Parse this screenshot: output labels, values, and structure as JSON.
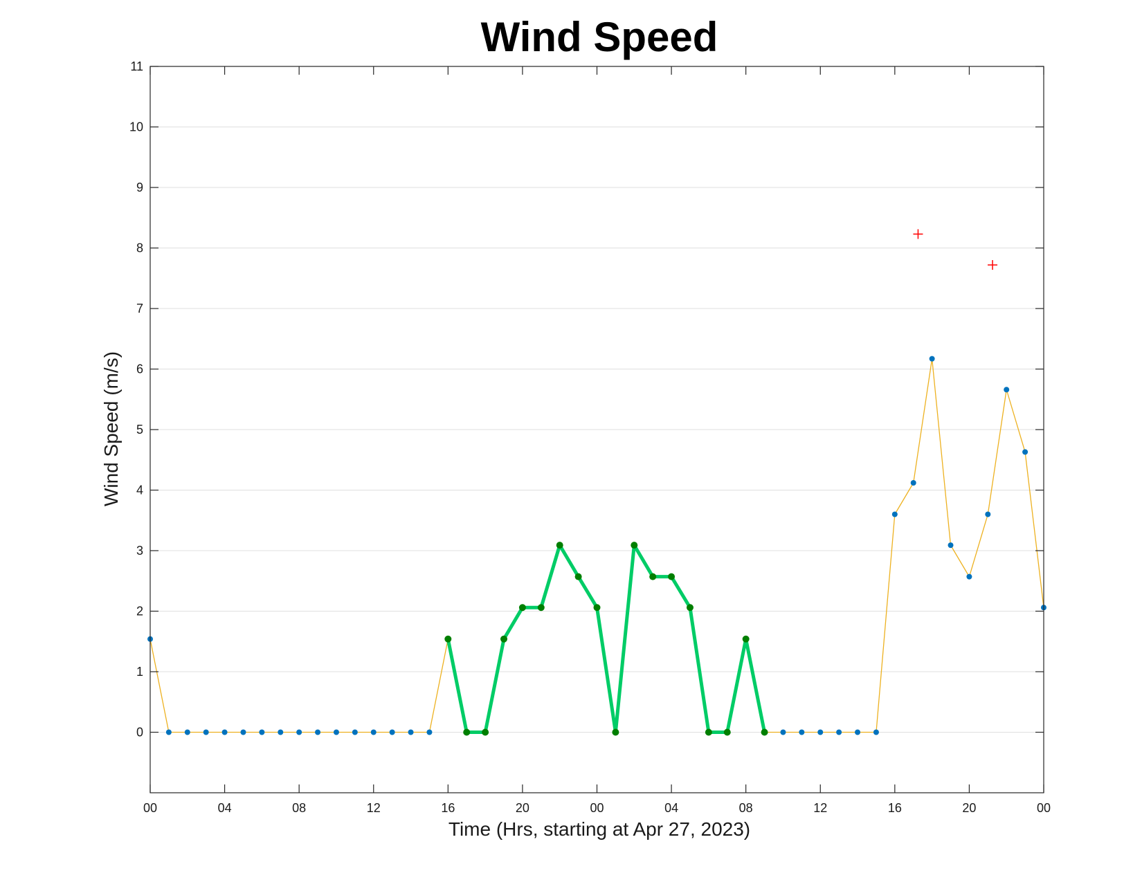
{
  "chart_data": {
    "type": "line",
    "title": "Wind Speed",
    "xlabel": "Time (Hrs, starting at Apr 27, 2023)",
    "ylabel": "Wind Speed (m/s)",
    "ylim": [
      -1,
      11
    ],
    "xlim": [
      "2023-04-27 00:00",
      "2023-04-29 00:00"
    ],
    "grid": "horizontal",
    "x_tick_labels": [
      "00",
      "04",
      "08",
      "12",
      "16",
      "20",
      "00",
      "04",
      "08",
      "12",
      "16",
      "20",
      "00"
    ],
    "y_tick_labels": [
      "11",
      "10",
      "9",
      "8",
      "7",
      "6",
      "5",
      "4",
      "3",
      "2",
      "1",
      "0"
    ],
    "x_ticks": [
      "2023-04-27 00:00",
      "2023-04-27 04:00",
      "2023-04-27 08:00",
      "2023-04-27 12:00",
      "2023-04-27 16:00",
      "2023-04-27 20:00",
      "2023-04-28 00:00",
      "2023-04-28 04:00",
      "2023-04-28 08:00",
      "2023-04-28 12:00",
      "2023-04-28 16:00",
      "2023-04-28 20:00",
      "2023-04-29 00:00"
    ],
    "y_ticks": [
      11,
      10,
      9,
      8,
      7,
      6,
      5,
      4,
      3,
      2,
      1,
      0
    ],
    "series": [
      {
        "style": "thin line with markers",
        "color": "#EDB120",
        "marker_color": "#0072BD",
        "x": [
          "2023-04-27 00:00",
          "2023-04-27 01:00",
          "2023-04-27 02:00",
          "2023-04-27 03:00",
          "2023-04-27 04:00",
          "2023-04-27 05:00",
          "2023-04-27 06:00",
          "2023-04-27 07:00",
          "2023-04-27 08:00",
          "2023-04-27 09:00",
          "2023-04-27 10:00",
          "2023-04-27 11:00",
          "2023-04-27 12:00",
          "2023-04-27 13:00",
          "2023-04-27 14:00",
          "2023-04-27 15:00",
          "2023-04-27 16:00",
          "2023-04-27 17:00",
          "2023-04-27 18:00",
          "2023-04-27 19:00",
          "2023-04-27 20:00",
          "2023-04-27 21:00",
          "2023-04-27 22:00",
          "2023-04-27 23:00",
          "2023-04-28 00:00",
          "2023-04-28 01:00",
          "2023-04-28 02:00",
          "2023-04-28 03:00",
          "2023-04-28 04:00",
          "2023-04-28 05:00",
          "2023-04-28 06:00",
          "2023-04-28 07:00",
          "2023-04-28 08:00",
          "2023-04-28 09:00",
          "2023-04-28 10:00",
          "2023-04-28 11:00",
          "2023-04-28 12:00",
          "2023-04-28 13:00",
          "2023-04-28 14:00",
          "2023-04-28 15:00",
          "2023-04-28 16:00",
          "2023-04-28 17:00",
          "2023-04-28 18:00",
          "2023-04-28 19:00",
          "2023-04-28 20:00",
          "2023-04-28 21:00",
          "2023-04-28 22:00",
          "2023-04-28 23:00",
          "2023-04-29 00:00"
        ],
        "y": [
          1.54,
          0,
          0,
          0,
          0,
          0,
          0,
          0,
          0,
          0,
          0,
          0,
          0,
          0,
          0,
          0,
          1.54,
          0,
          0,
          1.54,
          2.06,
          2.06,
          3.09,
          2.57,
          2.06,
          0,
          3.09,
          2.57,
          2.57,
          2.06,
          0,
          0,
          1.54,
          0,
          0,
          0,
          0,
          0,
          0,
          0,
          3.6,
          4.12,
          6.17,
          3.09,
          2.57,
          3.6,
          5.66,
          4.63,
          2.06
        ]
      },
      {
        "style": "thick line with markers",
        "color": "#00CC66",
        "marker_color": "#007F00",
        "x": [
          "2023-04-27 16:00",
          "2023-04-27 17:00",
          "2023-04-27 18:00",
          "2023-04-27 19:00",
          "2023-04-27 20:00",
          "2023-04-27 21:00",
          "2023-04-27 22:00",
          "2023-04-27 23:00",
          "2023-04-28 00:00",
          "2023-04-28 01:00",
          "2023-04-28 02:00",
          "2023-04-28 03:00",
          "2023-04-28 04:00",
          "2023-04-28 05:00",
          "2023-04-28 06:00",
          "2023-04-28 07:00",
          "2023-04-28 08:00",
          "2023-04-28 09:00"
        ],
        "y": [
          1.54,
          0,
          0,
          1.54,
          2.06,
          2.06,
          3.09,
          2.57,
          2.06,
          0,
          3.09,
          2.57,
          2.57,
          2.06,
          0,
          0,
          1.54,
          0
        ]
      },
      {
        "style": "plus markers",
        "color": "#FF0000",
        "x": [
          "2023-04-28 17:15",
          "2023-04-28 21:15"
        ],
        "y": [
          8.23,
          7.72
        ]
      }
    ]
  }
}
